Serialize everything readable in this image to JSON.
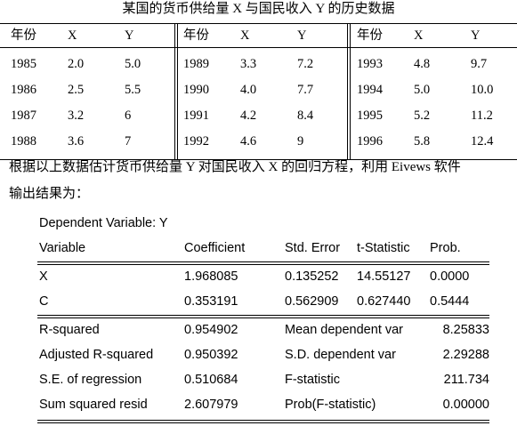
{
  "caption": "某国的货币供给量 X 与国民收入 Y 的历史数据",
  "data_table": {
    "headers": [
      [
        "年份",
        "X",
        "Y"
      ],
      [
        "年份",
        "X",
        "Y"
      ],
      [
        "年份",
        "X",
        "Y"
      ]
    ],
    "rows": [
      [
        [
          "1985",
          "2.0",
          "5.0"
        ],
        [
          "1989",
          "3.3",
          "7.2"
        ],
        [
          "1993",
          "4.8",
          "9.7"
        ]
      ],
      [
        [
          "1986",
          "2.5",
          "5.5"
        ],
        [
          "1990",
          "4.0",
          "7.7"
        ],
        [
          "1994",
          "5.0",
          "10.0"
        ]
      ],
      [
        [
          "1987",
          "3.2",
          "6"
        ],
        [
          "1991",
          "4.2",
          "8.4"
        ],
        [
          "1995",
          "5.2",
          "11.2"
        ]
      ],
      [
        [
          "1988",
          "3.6",
          "7"
        ],
        [
          "1992",
          "4.6",
          "9"
        ],
        [
          "1996",
          "5.8",
          "12.4"
        ]
      ]
    ]
  },
  "paragraph": {
    "line1": "根据以上数据估计货币供给量 Y 对国民收入 X 的回归方程，利用 Eivews 软件",
    "line2": "输出结果为："
  },
  "eviews": {
    "dependent": "Dependent Variable: Y",
    "headers": [
      "Variable",
      "Coefficient",
      "Std. Error",
      "t-Statistic",
      "Prob."
    ],
    "coef_rows": [
      [
        "X",
        "1.968085",
        "0.135252",
        "14.55127",
        "0.0000"
      ],
      [
        "C",
        "0.353191",
        "0.562909",
        "0.627440",
        "0.5444"
      ]
    ],
    "stat_rows": [
      [
        "R-squared",
        "0.954902",
        "Mean dependent var",
        "8.25833"
      ],
      [
        "Adjusted R-squared",
        "0.950392",
        "S.D. dependent var",
        "2.29288"
      ],
      [
        "S.E. of regression",
        "0.510684",
        "F-statistic",
        "211.734"
      ],
      [
        "Sum squared resid",
        "2.607979",
        "Prob(F-statistic)",
        "0.00000"
      ]
    ]
  }
}
